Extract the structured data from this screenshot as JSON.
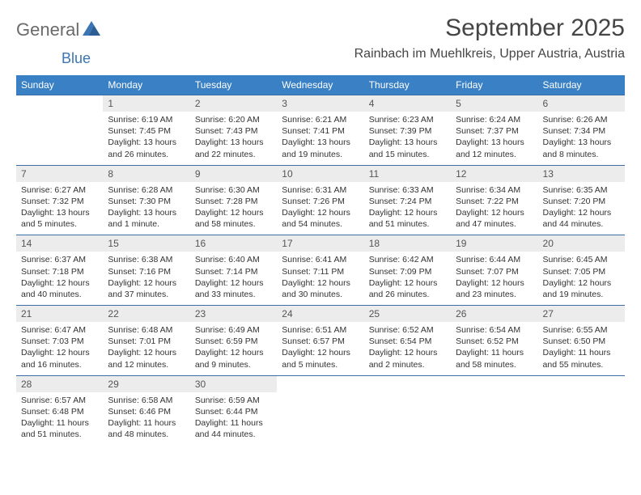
{
  "brand": {
    "name1": "General",
    "name2": "Blue"
  },
  "title": "September 2025",
  "location": "Rainbach im Muehlkreis, Upper Austria, Austria",
  "colors": {
    "header_bg": "#3a80c4",
    "header_text": "#ffffff",
    "daynum_bg": "#ececec",
    "row_border": "#3a6ea5",
    "title_color": "#454545",
    "logo_gray": "#6a6a6a",
    "logo_blue": "#3b75b3"
  },
  "weekdays": [
    "Sunday",
    "Monday",
    "Tuesday",
    "Wednesday",
    "Thursday",
    "Friday",
    "Saturday"
  ],
  "weeks": [
    [
      {
        "day": "",
        "lines": []
      },
      {
        "day": "1",
        "lines": [
          "Sunrise: 6:19 AM",
          "Sunset: 7:45 PM",
          "Daylight: 13 hours and 26 minutes."
        ]
      },
      {
        "day": "2",
        "lines": [
          "Sunrise: 6:20 AM",
          "Sunset: 7:43 PM",
          "Daylight: 13 hours and 22 minutes."
        ]
      },
      {
        "day": "3",
        "lines": [
          "Sunrise: 6:21 AM",
          "Sunset: 7:41 PM",
          "Daylight: 13 hours and 19 minutes."
        ]
      },
      {
        "day": "4",
        "lines": [
          "Sunrise: 6:23 AM",
          "Sunset: 7:39 PM",
          "Daylight: 13 hours and 15 minutes."
        ]
      },
      {
        "day": "5",
        "lines": [
          "Sunrise: 6:24 AM",
          "Sunset: 7:37 PM",
          "Daylight: 13 hours and 12 minutes."
        ]
      },
      {
        "day": "6",
        "lines": [
          "Sunrise: 6:26 AM",
          "Sunset: 7:34 PM",
          "Daylight: 13 hours and 8 minutes."
        ]
      }
    ],
    [
      {
        "day": "7",
        "lines": [
          "Sunrise: 6:27 AM",
          "Sunset: 7:32 PM",
          "Daylight: 13 hours and 5 minutes."
        ]
      },
      {
        "day": "8",
        "lines": [
          "Sunrise: 6:28 AM",
          "Sunset: 7:30 PM",
          "Daylight: 13 hours and 1 minute."
        ]
      },
      {
        "day": "9",
        "lines": [
          "Sunrise: 6:30 AM",
          "Sunset: 7:28 PM",
          "Daylight: 12 hours and 58 minutes."
        ]
      },
      {
        "day": "10",
        "lines": [
          "Sunrise: 6:31 AM",
          "Sunset: 7:26 PM",
          "Daylight: 12 hours and 54 minutes."
        ]
      },
      {
        "day": "11",
        "lines": [
          "Sunrise: 6:33 AM",
          "Sunset: 7:24 PM",
          "Daylight: 12 hours and 51 minutes."
        ]
      },
      {
        "day": "12",
        "lines": [
          "Sunrise: 6:34 AM",
          "Sunset: 7:22 PM",
          "Daylight: 12 hours and 47 minutes."
        ]
      },
      {
        "day": "13",
        "lines": [
          "Sunrise: 6:35 AM",
          "Sunset: 7:20 PM",
          "Daylight: 12 hours and 44 minutes."
        ]
      }
    ],
    [
      {
        "day": "14",
        "lines": [
          "Sunrise: 6:37 AM",
          "Sunset: 7:18 PM",
          "Daylight: 12 hours and 40 minutes."
        ]
      },
      {
        "day": "15",
        "lines": [
          "Sunrise: 6:38 AM",
          "Sunset: 7:16 PM",
          "Daylight: 12 hours and 37 minutes."
        ]
      },
      {
        "day": "16",
        "lines": [
          "Sunrise: 6:40 AM",
          "Sunset: 7:14 PM",
          "Daylight: 12 hours and 33 minutes."
        ]
      },
      {
        "day": "17",
        "lines": [
          "Sunrise: 6:41 AM",
          "Sunset: 7:11 PM",
          "Daylight: 12 hours and 30 minutes."
        ]
      },
      {
        "day": "18",
        "lines": [
          "Sunrise: 6:42 AM",
          "Sunset: 7:09 PM",
          "Daylight: 12 hours and 26 minutes."
        ]
      },
      {
        "day": "19",
        "lines": [
          "Sunrise: 6:44 AM",
          "Sunset: 7:07 PM",
          "Daylight: 12 hours and 23 minutes."
        ]
      },
      {
        "day": "20",
        "lines": [
          "Sunrise: 6:45 AM",
          "Sunset: 7:05 PM",
          "Daylight: 12 hours and 19 minutes."
        ]
      }
    ],
    [
      {
        "day": "21",
        "lines": [
          "Sunrise: 6:47 AM",
          "Sunset: 7:03 PM",
          "Daylight: 12 hours and 16 minutes."
        ]
      },
      {
        "day": "22",
        "lines": [
          "Sunrise: 6:48 AM",
          "Sunset: 7:01 PM",
          "Daylight: 12 hours and 12 minutes."
        ]
      },
      {
        "day": "23",
        "lines": [
          "Sunrise: 6:49 AM",
          "Sunset: 6:59 PM",
          "Daylight: 12 hours and 9 minutes."
        ]
      },
      {
        "day": "24",
        "lines": [
          "Sunrise: 6:51 AM",
          "Sunset: 6:57 PM",
          "Daylight: 12 hours and 5 minutes."
        ]
      },
      {
        "day": "25",
        "lines": [
          "Sunrise: 6:52 AM",
          "Sunset: 6:54 PM",
          "Daylight: 12 hours and 2 minutes."
        ]
      },
      {
        "day": "26",
        "lines": [
          "Sunrise: 6:54 AM",
          "Sunset: 6:52 PM",
          "Daylight: 11 hours and 58 minutes."
        ]
      },
      {
        "day": "27",
        "lines": [
          "Sunrise: 6:55 AM",
          "Sunset: 6:50 PM",
          "Daylight: 11 hours and 55 minutes."
        ]
      }
    ],
    [
      {
        "day": "28",
        "lines": [
          "Sunrise: 6:57 AM",
          "Sunset: 6:48 PM",
          "Daylight: 11 hours and 51 minutes."
        ]
      },
      {
        "day": "29",
        "lines": [
          "Sunrise: 6:58 AM",
          "Sunset: 6:46 PM",
          "Daylight: 11 hours and 48 minutes."
        ]
      },
      {
        "day": "30",
        "lines": [
          "Sunrise: 6:59 AM",
          "Sunset: 6:44 PM",
          "Daylight: 11 hours and 44 minutes."
        ]
      },
      {
        "day": "",
        "lines": []
      },
      {
        "day": "",
        "lines": []
      },
      {
        "day": "",
        "lines": []
      },
      {
        "day": "",
        "lines": []
      }
    ]
  ]
}
